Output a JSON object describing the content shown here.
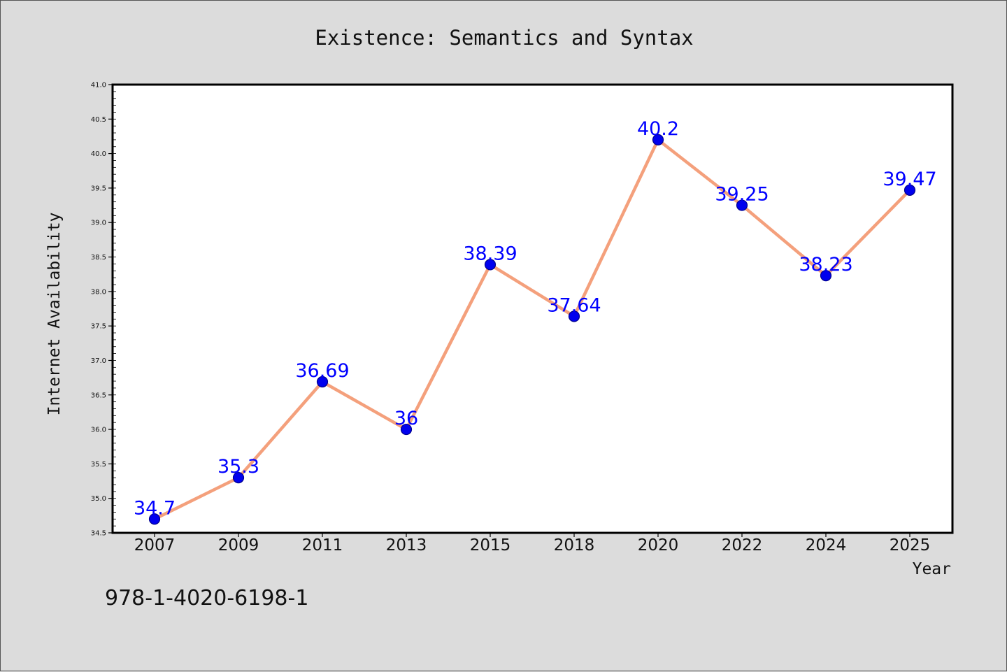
{
  "chart_data": {
    "type": "line",
    "title": "Existence: Semantics and Syntax",
    "xlabel": "Year",
    "ylabel": "Internet Availability",
    "categories": [
      "2007",
      "2009",
      "2011",
      "2013",
      "2015",
      "2018",
      "2020",
      "2022",
      "2024",
      "2025"
    ],
    "series": [
      {
        "values": [
          34.7,
          35.3,
          36.69,
          36,
          38.39,
          37.64,
          40.2,
          39.25,
          38.23,
          39.47
        ],
        "labels": [
          "34.7",
          "35.3",
          "36.69",
          "36",
          "38.39",
          "37.64",
          "40.2",
          "39.25",
          "38.23",
          "39.47"
        ]
      }
    ],
    "ylim": [
      34.5,
      41.0
    ],
    "yticks": [
      "34.5",
      "35.0",
      "35.5",
      "36.0",
      "36.5",
      "37.0",
      "37.5",
      "38.0",
      "38.5",
      "39.0",
      "39.5",
      "40.0",
      "40.5",
      "41.0"
    ],
    "grid": false,
    "legend": "none",
    "colors": {
      "line": "#f4a07c",
      "marker_fill": "#0000ee",
      "marker_edge": "#00008b",
      "data_label": "#0000ff",
      "background": "#dcdcdc",
      "plot_background": "#ffffff"
    }
  },
  "annotation": {
    "isbn": "978-1-4020-6198-1"
  }
}
